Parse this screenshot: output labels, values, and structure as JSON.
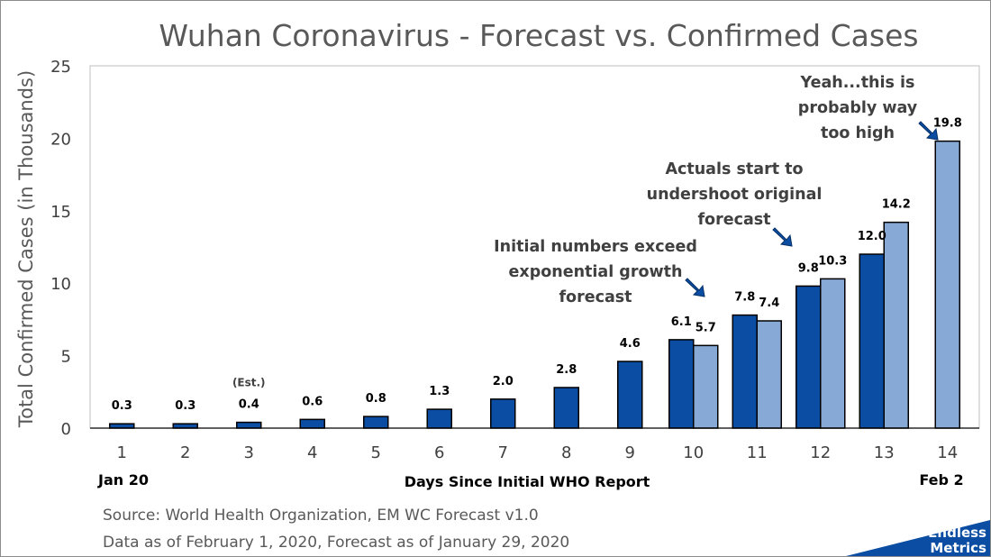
{
  "chart_data": {
    "type": "bar",
    "title": "Wuhan Coronavirus - Forecast vs. Confirmed Cases",
    "xlabel": "Days Since Initial WHO Report",
    "ylabel": "Total Confirmed Cases (in Thousands)",
    "ylim": [
      0,
      25
    ],
    "yticks": [
      0,
      5,
      10,
      15,
      20,
      25
    ],
    "categories": [
      "1",
      "2",
      "3",
      "4",
      "5",
      "6",
      "7",
      "8",
      "9",
      "10",
      "11",
      "12",
      "13",
      "14"
    ],
    "series": [
      {
        "name": "Confirmed Cases",
        "color": "#0A4DA2",
        "values": [
          0.3,
          0.3,
          0.4,
          0.6,
          0.8,
          1.3,
          2.0,
          2.8,
          4.6,
          6.1,
          7.8,
          9.8,
          12.0,
          null
        ],
        "labels": [
          "0.3",
          "0.3",
          "0.4",
          "0.6",
          "0.8",
          "1.3",
          "2.0",
          "2.8",
          "4.6",
          "6.1",
          "7.8",
          "9.8",
          "12.0",
          ""
        ]
      },
      {
        "name": "Forecast",
        "color": "#86A9D6",
        "values": [
          null,
          null,
          null,
          null,
          null,
          null,
          null,
          null,
          null,
          5.7,
          7.4,
          10.3,
          14.2,
          19.8
        ],
        "labels": [
          "",
          "",
          "",
          "",
          "",
          "",
          "",
          "",
          "",
          "5.7",
          "7.4",
          "10.3",
          "14.2",
          "19.8"
        ]
      }
    ],
    "est_note": "(Est.)",
    "date_start": "Jan 20",
    "date_end": "Feb 2",
    "annotations": [
      {
        "lines": [
          "Initial numbers exceed",
          "exponential growth",
          "forecast"
        ]
      },
      {
        "lines": [
          "Actuals start to",
          "undershoot original",
          "forecast"
        ]
      },
      {
        "lines": [
          "Yeah...this is",
          "probably way",
          "too high"
        ]
      }
    ]
  },
  "source": {
    "line1": "Source: World Health Organization, EM WC Forecast v1.0",
    "line2": "Data as of February 1, 2020, Forecast as of January 29, 2020"
  },
  "brand": {
    "line1": "Endless",
    "line2": "Metrics",
    "color": "#0A4DA2"
  }
}
